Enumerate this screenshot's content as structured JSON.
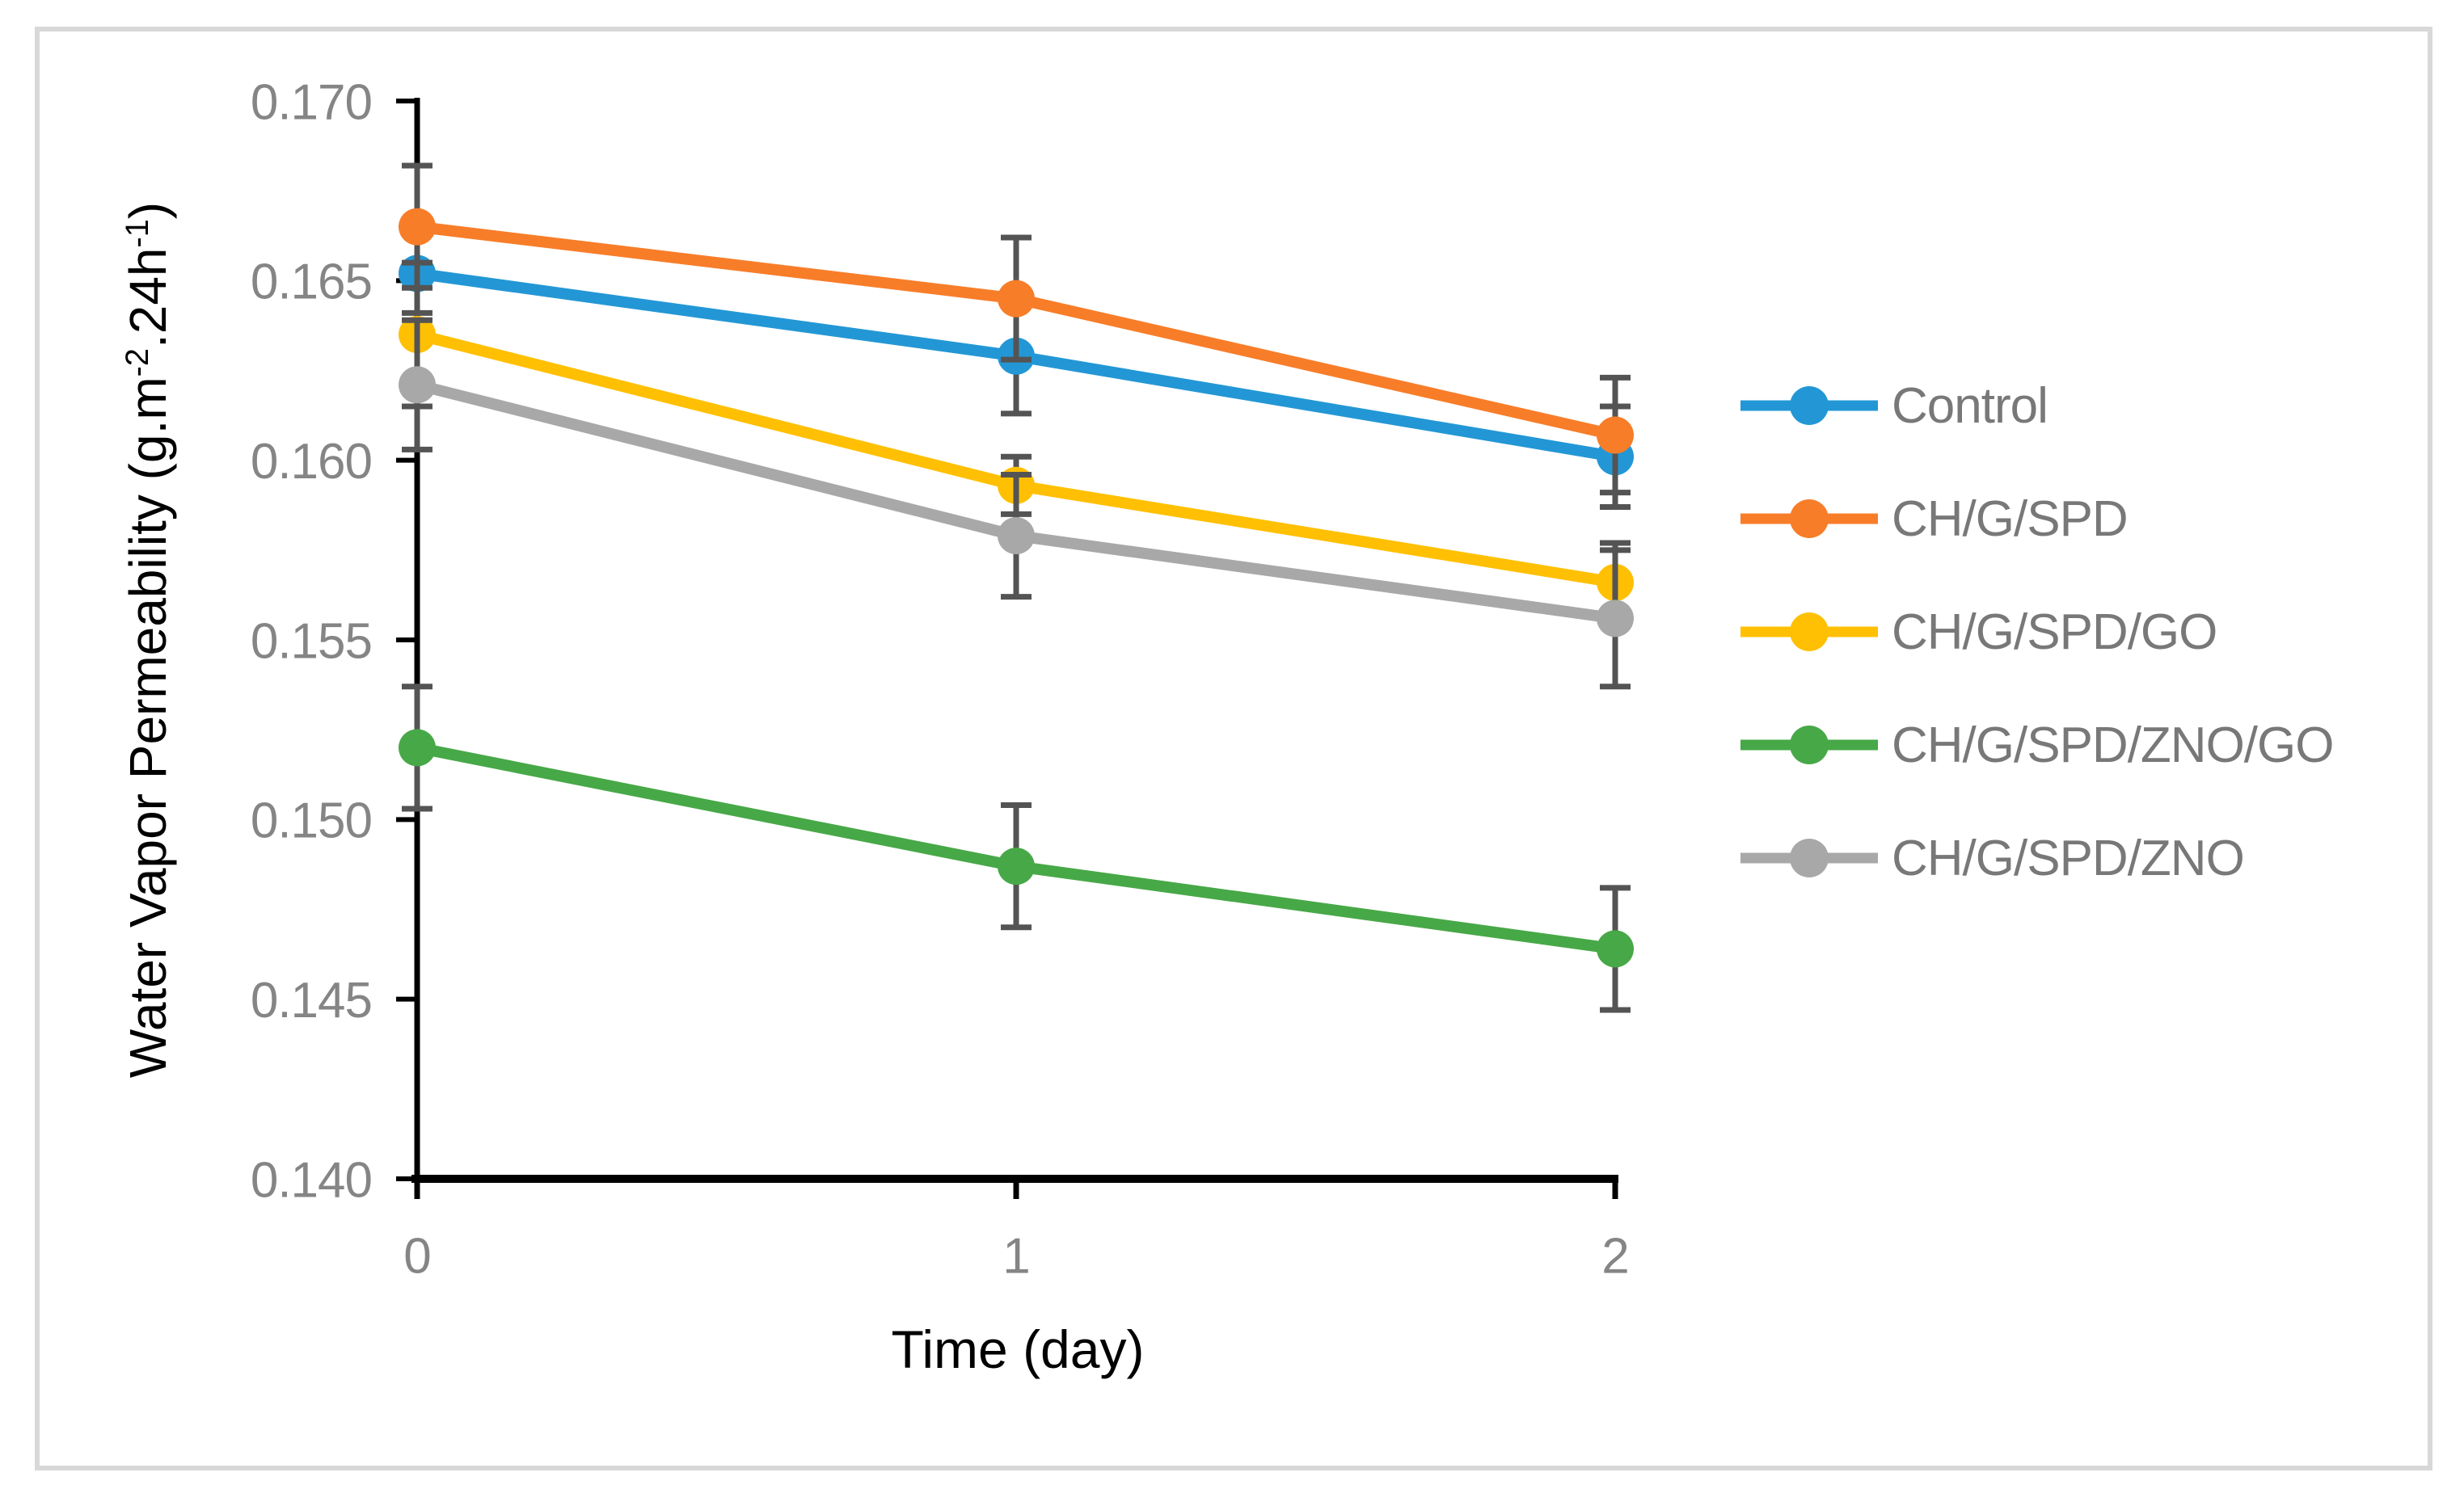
{
  "figure": {
    "background_color": "#FFFFFF",
    "border_color": "#D8D8D8"
  },
  "chart_data": {
    "type": "line",
    "title": "",
    "xlabel": "Time (day)",
    "ylabel_parts": {
      "p1": "Water Vapor Permeability (g.m",
      "sup1": "-2",
      "p2": ".24h",
      "sup2": "-1",
      "p3": ")"
    },
    "categories": [
      0,
      1,
      2
    ],
    "x_tick_labels": [
      "0",
      "1",
      "2"
    ],
    "y_tick_labels": [
      "0.170",
      "0.165",
      "0.160",
      "0.155",
      "0.150",
      "0.145",
      "0.140"
    ],
    "ylim": [
      0.14,
      0.17
    ],
    "xlim": [
      0,
      2
    ],
    "grid": false,
    "legend_position": "right",
    "error_bars": true,
    "series": [
      {
        "name": "Control",
        "color": "#2397D5",
        "values": [
          0.1652,
          0.1629,
          0.1601
        ],
        "errors": [
          0.0011,
          0.0016,
          0.0014
        ]
      },
      {
        "name": "CH/G/SPD",
        "color": "#F87D29",
        "values": [
          0.1665,
          0.1645,
          0.1607
        ],
        "errors": [
          0.0017,
          0.0017,
          0.0016
        ]
      },
      {
        "name": "CH/G/SPD/GO",
        "color": "#FFC003",
        "values": [
          0.1635,
          0.1593,
          0.1566
        ],
        "errors": [
          0.002,
          0.0008,
          0.0011
        ]
      },
      {
        "name": "CH/G/SPD/ZNO/GO",
        "color": "#47A847",
        "values": [
          0.152,
          0.1487,
          0.1464
        ],
        "errors": [
          0.0017,
          0.0017,
          0.0017
        ]
      },
      {
        "name": "CH/G/SPD/ZNO",
        "color": "#A8A8A8",
        "values": [
          0.1621,
          0.1579,
          0.1556
        ],
        "errors": [
          0.0018,
          0.0017,
          0.0019
        ]
      }
    ],
    "colors": {
      "axis": "#000000",
      "error_bar": "#545454",
      "tick_label": "#858585",
      "legend_text": "#787878"
    }
  }
}
